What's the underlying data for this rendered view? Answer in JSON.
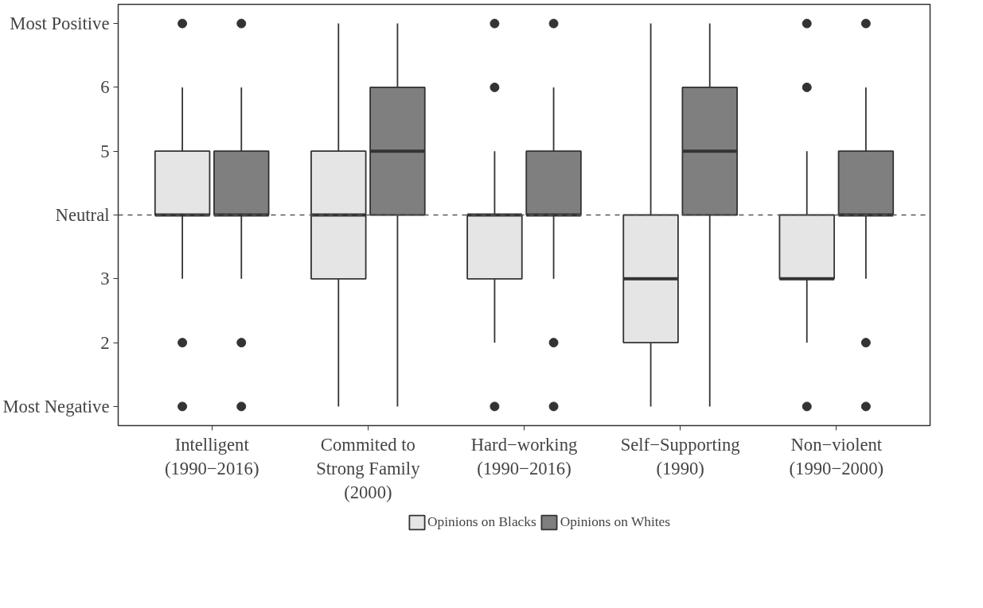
{
  "chart_data": {
    "type": "box",
    "categories": [
      "Intelligent\n(1990−2016)",
      "Commited to\nStrong Family\n(2000)",
      "Hard−working\n(1990−2016)",
      "Self−Supporting\n(1990)",
      "Non−violent\n(1990−2000)"
    ],
    "series": [
      {
        "name": "Opinions on Blacks",
        "color": "#e5e5e5",
        "boxes": [
          {
            "low": 3,
            "q1": 4,
            "median": 4,
            "q3": 5,
            "high": 6,
            "outliers": [
              7,
              2,
              1
            ]
          },
          {
            "low": 1,
            "q1": 3,
            "median": 4,
            "q3": 5,
            "high": 7
          },
          {
            "low": 2,
            "q1": 3,
            "median": 4,
            "q3": 4,
            "high": 5,
            "outliers": [
              7,
              6,
              1
            ]
          },
          {
            "low": 1,
            "q1": 2,
            "median": 3,
            "q3": 4,
            "high": 7
          },
          {
            "low": 2,
            "q1": 3,
            "median": 3,
            "q3": 4,
            "high": 5,
            "outliers": [
              7,
              6,
              1
            ]
          }
        ]
      },
      {
        "name": "Opinions on Whites",
        "color": "#7f7f7f",
        "boxes": [
          {
            "low": 3,
            "q1": 4,
            "median": 4,
            "q3": 5,
            "high": 6,
            "outliers": [
              7,
              2,
              1
            ]
          },
          {
            "low": 1,
            "q1": 4,
            "median": 5,
            "q3": 6,
            "high": 7
          },
          {
            "low": 3,
            "q1": 4,
            "median": 4,
            "q3": 5,
            "high": 6,
            "outliers": [
              7,
              2,
              1
            ]
          },
          {
            "low": 1,
            "q1": 4,
            "median": 5,
            "q3": 6,
            "high": 7
          },
          {
            "low": 3,
            "q1": 4,
            "median": 4,
            "q3": 5,
            "high": 6,
            "outliers": [
              7,
              2,
              1
            ]
          }
        ]
      }
    ],
    "ylim": [
      0.7,
      7.3
    ],
    "yticks": [
      {
        "value": 1,
        "label": "Most Negative"
      },
      2,
      3,
      {
        "value": 4,
        "label": "Neutral"
      },
      5,
      6,
      {
        "value": 7,
        "label": "Most Positive"
      }
    ],
    "ref_lines": [
      {
        "axis": "y",
        "value": 4,
        "label": null,
        "color": "#555555",
        "line_style": "dashed"
      }
    ],
    "grid": false,
    "legend": "bottom"
  }
}
